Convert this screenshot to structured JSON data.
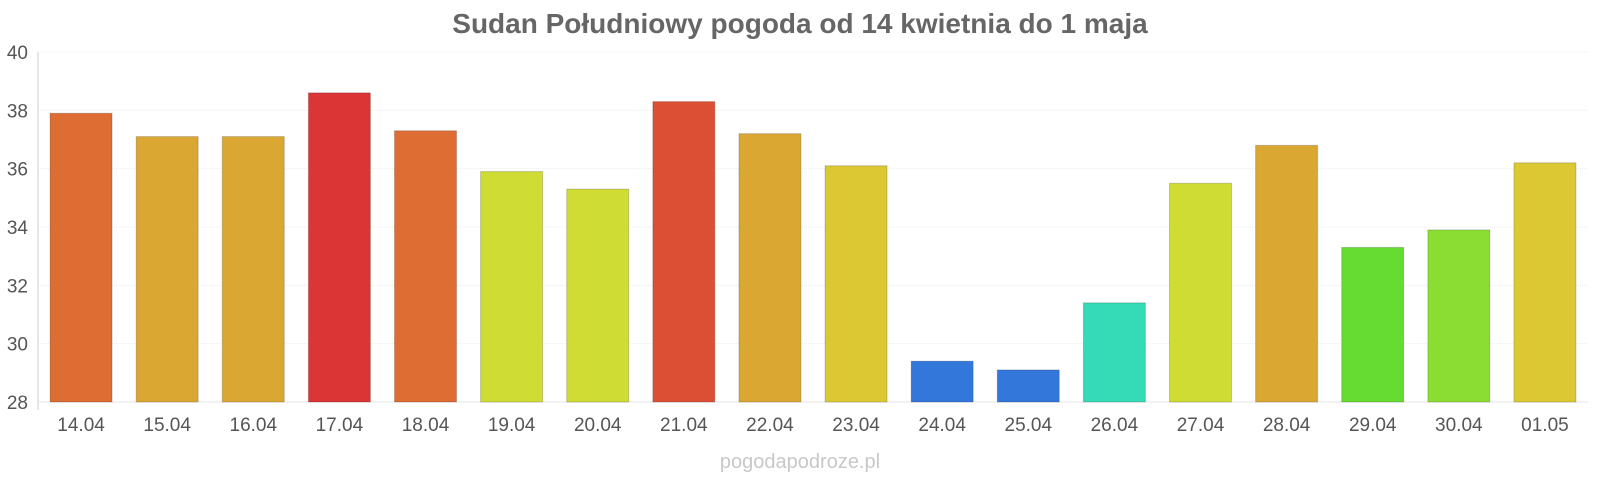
{
  "chart_data": {
    "type": "bar",
    "title": "Sudan Południowy pogoda od 14 kwietnia do 1 maja",
    "xlabel": "",
    "ylabel": "",
    "ylim": [
      28,
      40
    ],
    "yticks": [
      28,
      30,
      32,
      34,
      36,
      38,
      40
    ],
    "grid": true,
    "categories": [
      "14.04",
      "15.04",
      "16.04",
      "17.04",
      "18.04",
      "19.04",
      "20.04",
      "21.04",
      "22.04",
      "23.04",
      "24.04",
      "25.04",
      "26.04",
      "27.04",
      "28.04",
      "29.04",
      "30.04",
      "01.05"
    ],
    "values": [
      37.9,
      37.1,
      37.1,
      38.6,
      37.3,
      35.9,
      35.3,
      38.3,
      37.2,
      36.1,
      29.4,
      29.1,
      31.4,
      35.5,
      36.8,
      33.3,
      33.9,
      36.2
    ],
    "colors": [
      "#dd6d33",
      "#dba733",
      "#dba733",
      "#db3535",
      "#dd6d33",
      "#cfdc33",
      "#cfdc33",
      "#dd4f35",
      "#dba733",
      "#dbc833",
      "#3477db",
      "#3477db",
      "#35dbb6",
      "#cfdc33",
      "#dba733",
      "#66dc33",
      "#8bdc33",
      "#dbc833"
    ]
  },
  "watermark": "pogodapodroze.pl"
}
